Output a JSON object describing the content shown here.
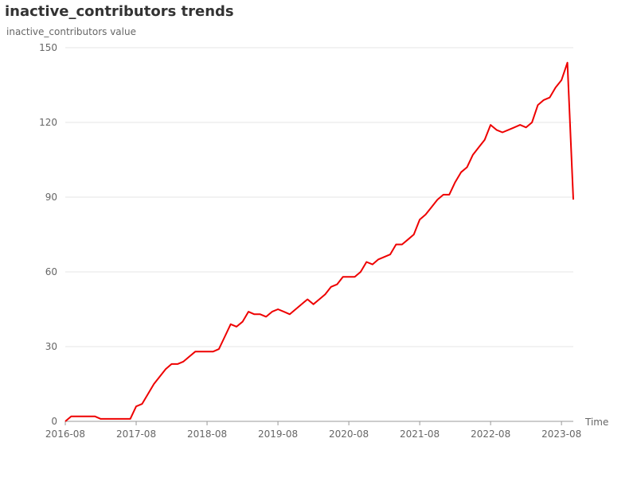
{
  "chart_data": {
    "type": "line",
    "title": "inactive_contributors trends",
    "xlabel": "Time",
    "ylabel": "inactive_contributors value",
    "ylim": [
      0,
      150
    ],
    "y_ticks": [
      0,
      30,
      60,
      90,
      120,
      150
    ],
    "x_range": [
      "2016-08",
      "2023-10"
    ],
    "x_tick_labels": [
      "2016-08",
      "2017-08",
      "2018-08",
      "2019-08",
      "2020-08",
      "2021-08",
      "2022-08",
      "2023-08"
    ],
    "grid": true,
    "series": [
      {
        "color": "#ee0000",
        "x": [
          "2016-08",
          "2016-09",
          "2016-10",
          "2016-11",
          "2016-12",
          "2017-01",
          "2017-02",
          "2017-03",
          "2017-04",
          "2017-05",
          "2017-06",
          "2017-07",
          "2017-08",
          "2017-09",
          "2017-10",
          "2017-11",
          "2017-12",
          "2018-01",
          "2018-02",
          "2018-03",
          "2018-04",
          "2018-05",
          "2018-06",
          "2018-07",
          "2018-08",
          "2018-09",
          "2018-10",
          "2018-11",
          "2018-12",
          "2019-01",
          "2019-02",
          "2019-03",
          "2019-04",
          "2019-05",
          "2019-06",
          "2019-07",
          "2019-08",
          "2019-09",
          "2019-10",
          "2019-11",
          "2019-12",
          "2020-01",
          "2020-02",
          "2020-03",
          "2020-04",
          "2020-05",
          "2020-06",
          "2020-07",
          "2020-08",
          "2020-09",
          "2020-10",
          "2020-11",
          "2020-12",
          "2021-01",
          "2021-02",
          "2021-03",
          "2021-04",
          "2021-05",
          "2021-06",
          "2021-07",
          "2021-08",
          "2021-09",
          "2021-10",
          "2021-11",
          "2021-12",
          "2022-01",
          "2022-02",
          "2022-03",
          "2022-04",
          "2022-05",
          "2022-06",
          "2022-07",
          "2022-08",
          "2022-09",
          "2022-10",
          "2022-11",
          "2022-12",
          "2023-01",
          "2023-02",
          "2023-03",
          "2023-04",
          "2023-05",
          "2023-06",
          "2023-07",
          "2023-08",
          "2023-09",
          "2023-10"
        ],
        "values": [
          0,
          2,
          2,
          2,
          2,
          2,
          1,
          1,
          1,
          1,
          1,
          1,
          6,
          7,
          11,
          15,
          18,
          21,
          23,
          23,
          24,
          26,
          28,
          28,
          28,
          28,
          29,
          34,
          39,
          38,
          40,
          44,
          43,
          43,
          42,
          44,
          45,
          44,
          43,
          45,
          47,
          49,
          47,
          49,
          51,
          54,
          55,
          58,
          58,
          58,
          60,
          64,
          63,
          65,
          66,
          67,
          71,
          71,
          73,
          75,
          81,
          83,
          86,
          89,
          91,
          91,
          96,
          100,
          102,
          107,
          110,
          113,
          119,
          117,
          116,
          117,
          118,
          119,
          118,
          120,
          127,
          129,
          130,
          134,
          137,
          144,
          89
        ]
      }
    ]
  }
}
